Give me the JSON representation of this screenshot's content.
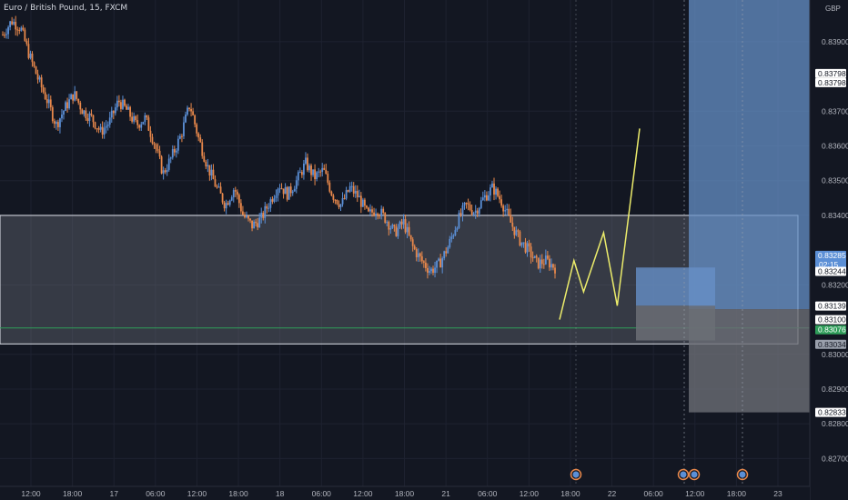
{
  "title": "Euro / British Pound, 15, FXCM",
  "currency": "GBP",
  "countdown": "02:15",
  "colors": {
    "bg": "#131722",
    "up": "#5b8fd6",
    "down": "#e8884b",
    "grid": "#1e2230",
    "text": "#b2b5be",
    "range_fill": "#787b86",
    "range_border": "#e0e3eb",
    "blue_zone": "#6690c7",
    "gray_zone": "#6b6e75",
    "projection": "#ecec6b",
    "green_line": "#2f9e5a",
    "event": "#e8884b"
  },
  "chart_data": {
    "type": "candlestick",
    "ylim": [
      0.8262,
      0.8402
    ],
    "y_ticks": [
      "0.83900",
      "0.83700",
      "0.83600",
      "0.83500",
      "0.83400",
      "0.83200",
      "0.83000",
      "0.82900",
      "0.82800",
      "0.82700"
    ],
    "x_ticks": [
      "12:00",
      "18:00",
      "17",
      "06:00",
      "12:00",
      "18:00",
      "18",
      "06:00",
      "12:00",
      "18:00",
      "21",
      "06:00",
      "12:00",
      "18:00",
      "22",
      "06:00",
      "12:00",
      "18:00",
      "23"
    ],
    "price_labels": [
      {
        "text": "0.83798",
        "style": "white"
      },
      {
        "text": "0.83798",
        "style": "white"
      },
      {
        "text": "0.83285",
        "style": "blue"
      },
      {
        "text": "0.83244",
        "style": "white"
      },
      {
        "text": "0.83139",
        "style": "white"
      },
      {
        "text": "0.83100",
        "style": "white"
      },
      {
        "text": "0.83076",
        "style": "green"
      },
      {
        "text": "0.83034",
        "style": "gray"
      },
      {
        "text": "0.82833",
        "style": "white"
      }
    ],
    "range_box": {
      "top": 0.834,
      "bottom": 0.8303
    },
    "green_line": 0.83076,
    "price_path": [
      0.8392,
      0.8396,
      0.8394,
      0.8386,
      0.8379,
      0.8373,
      0.8366,
      0.8371,
      0.8375,
      0.837,
      0.8368,
      0.8364,
      0.8367,
      0.8373,
      0.837,
      0.8366,
      0.8368,
      0.8361,
      0.8352,
      0.8357,
      0.8363,
      0.8372,
      0.8362,
      0.8354,
      0.8348,
      0.8343,
      0.8348,
      0.834,
      0.8337,
      0.8339,
      0.8344,
      0.8349,
      0.8346,
      0.835,
      0.8355,
      0.8351,
      0.8353,
      0.8346,
      0.8343,
      0.8348,
      0.8345,
      0.834,
      0.8342,
      0.8339,
      0.8335,
      0.8338,
      0.8331,
      0.8327,
      0.8324,
      0.8326,
      0.8331,
      0.8338,
      0.8343,
      0.8341,
      0.8345,
      0.8348,
      0.8344,
      0.8338,
      0.8333,
      0.833,
      0.8326,
      0.8327,
      0.8325
    ],
    "projection": [
      {
        "t": 0.0,
        "p": 0.831
      },
      {
        "t": 0.18,
        "p": 0.8327
      },
      {
        "t": 0.3,
        "p": 0.8318
      },
      {
        "t": 0.55,
        "p": 0.8335
      },
      {
        "t": 0.72,
        "p": 0.8314
      },
      {
        "t": 1.0,
        "p": 0.8365
      }
    ]
  }
}
